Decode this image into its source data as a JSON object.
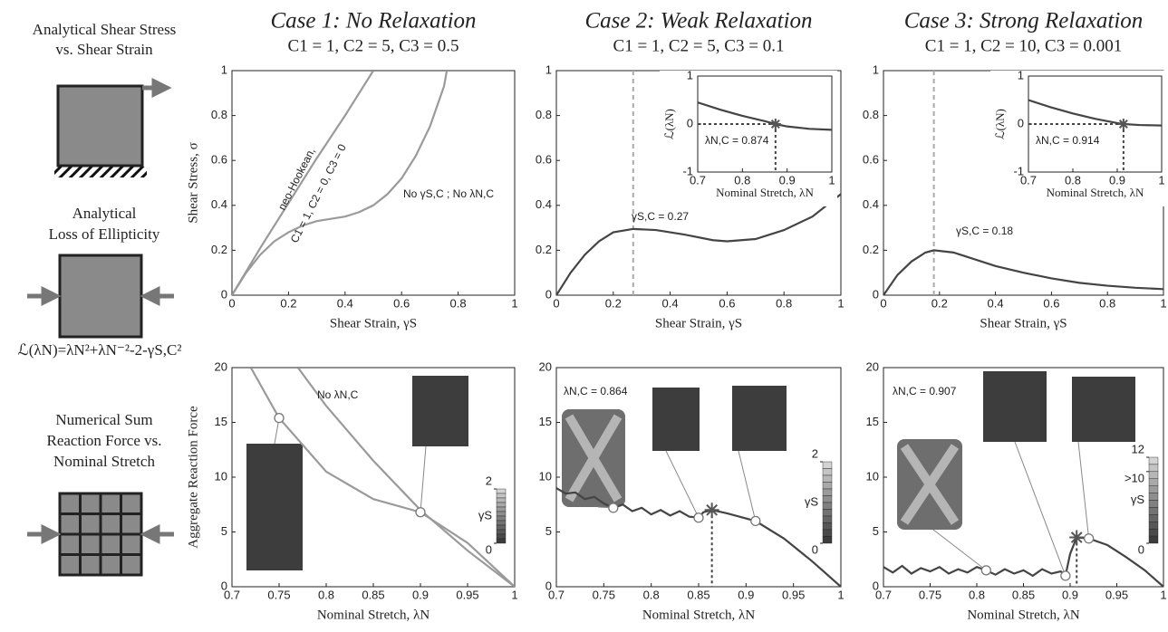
{
  "left_labels": {
    "shear_title": [
      "Analytical Shear Stress",
      "vs. Shear Strain"
    ],
    "ellipticity_title": [
      "Analytical",
      "Loss of Ellipticity"
    ],
    "formula": "ℒ(λN)=λN²+λN⁻²-2-γS,C²",
    "numerical_title": [
      "Numerical Sum",
      "Reaction Force vs.",
      "Nominal Stretch"
    ]
  },
  "chart_data": [
    {
      "type": "line",
      "title": "Case 1: No Relaxation",
      "subtitle": "C1 = 1, C2 = 5, C3 = 0.5",
      "xlabel": "Shear Strain, γS",
      "ylabel": "Shear Stress, σ",
      "xlim": [
        0,
        1
      ],
      "ylim": [
        0,
        1
      ],
      "xticks": [
        0,
        0.2,
        0.4,
        0.6,
        0.8,
        1
      ],
      "yticks": [
        0,
        0.2,
        0.4,
        0.6,
        0.8,
        1
      ],
      "series": [
        {
          "color": "#9a9a9a",
          "x": [
            0,
            0.1,
            0.2,
            0.3,
            0.4,
            0.5
          ],
          "values": [
            0,
            0.21,
            0.41,
            0.61,
            0.8,
            1
          ]
        },
        {
          "color": "#9a9a9a",
          "x": [
            0,
            0.05,
            0.1,
            0.15,
            0.2,
            0.25,
            0.3,
            0.35,
            0.4,
            0.45,
            0.5,
            0.55,
            0.6,
            0.65,
            0.7,
            0.75,
            0.76
          ],
          "values": [
            0,
            0.1,
            0.18,
            0.24,
            0.28,
            0.31,
            0.33,
            0.34,
            0.35,
            0.37,
            0.4,
            0.45,
            0.52,
            0.62,
            0.75,
            0.93,
            1
          ]
        }
      ],
      "annotations": [
        "neo-Hookean,",
        "C1 = 1, C2 = 0, C3 = 0",
        "No γS,C ; No λN,C"
      ]
    },
    {
      "type": "line",
      "title": "Case 2: Weak Relaxation",
      "subtitle": "C1 = 1, C2 = 5, C3 = 0.1",
      "xlabel": "Shear Strain, γS",
      "xlim": [
        0,
        1
      ],
      "ylim": [
        0,
        1
      ],
      "xticks": [
        0,
        0.2,
        0.4,
        0.6,
        0.8,
        1
      ],
      "yticks": [
        0,
        0.2,
        0.4,
        0.6,
        0.8,
        1
      ],
      "series": [
        {
          "color": "#444444",
          "x": [
            0,
            0.05,
            0.1,
            0.15,
            0.2,
            0.27,
            0.35,
            0.45,
            0.55,
            0.6,
            0.7,
            0.8,
            0.9,
            1
          ],
          "values": [
            0,
            0.1,
            0.18,
            0.24,
            0.28,
            0.295,
            0.29,
            0.27,
            0.245,
            0.24,
            0.25,
            0.29,
            0.35,
            0.45
          ]
        }
      ],
      "vline": 0.27,
      "annotations": [
        "γS,C = 0.27"
      ]
    },
    {
      "type": "line",
      "title": "Case 3: Strong Relaxation",
      "subtitle": "C1 = 1, C2 = 10, C3 = 0.001",
      "xlabel": "Shear Strain, γS",
      "xlim": [
        0,
        1
      ],
      "ylim": [
        0,
        1
      ],
      "xticks": [
        0,
        0.2,
        0.4,
        0.6,
        0.8,
        1
      ],
      "yticks": [
        0,
        0.2,
        0.4,
        0.6,
        0.8,
        1
      ],
      "series": [
        {
          "color": "#444444",
          "x": [
            0,
            0.05,
            0.1,
            0.15,
            0.18,
            0.25,
            0.3,
            0.4,
            0.5,
            0.6,
            0.7,
            0.8,
            0.9,
            1
          ],
          "values": [
            0,
            0.09,
            0.15,
            0.19,
            0.2,
            0.19,
            0.17,
            0.13,
            0.1,
            0.075,
            0.055,
            0.042,
            0.033,
            0.027
          ]
        }
      ],
      "vline": 0.18,
      "annotations": [
        "γS,C = 0.18"
      ]
    },
    {
      "type": "line",
      "xlabel": "Nominal Stretch, λN",
      "ylabel": "ℒ(λN)",
      "xlim": [
        0.7,
        1
      ],
      "ylim": [
        -1,
        1
      ],
      "xticks": [
        0.7,
        0.8,
        0.9,
        1
      ],
      "yticks": [
        -1,
        0,
        1
      ],
      "series": [
        {
          "color": "#444444",
          "x": [
            0.7,
            0.75,
            0.8,
            0.85,
            0.874,
            0.9,
            0.95,
            1
          ],
          "values": [
            0.45,
            0.3,
            0.17,
            0.06,
            0,
            -0.05,
            -0.1,
            -0.12
          ]
        }
      ],
      "critical": {
        "x": 0.874,
        "y": 0
      },
      "annotations": [
        "λN,C = 0.874"
      ]
    },
    {
      "type": "line",
      "xlabel": "Nominal Stretch, λN",
      "ylabel": "ℒ(λN)",
      "xlim": [
        0.7,
        1
      ],
      "ylim": [
        -1,
        1
      ],
      "xticks": [
        0.7,
        0.8,
        0.9,
        1
      ],
      "yticks": [
        -1,
        0,
        1
      ],
      "series": [
        {
          "color": "#444444",
          "x": [
            0.7,
            0.75,
            0.8,
            0.85,
            0.9,
            0.914,
            0.95,
            1
          ],
          "values": [
            0.5,
            0.35,
            0.22,
            0.11,
            0.02,
            0,
            -0.02,
            -0.03
          ]
        }
      ],
      "critical": {
        "x": 0.914,
        "y": 0
      },
      "annotations": [
        "λN,C = 0.914"
      ]
    },
    {
      "type": "line",
      "xlabel": "Nominal Stretch, λN",
      "ylabel": "Aggregate Reaction Force",
      "xlim": [
        0.7,
        1
      ],
      "ylim": [
        0,
        20
      ],
      "xticks": [
        0.7,
        0.75,
        0.8,
        0.85,
        0.9,
        0.95,
        1
      ],
      "yticks": [
        0,
        5,
        10,
        15,
        20
      ],
      "series": [
        {
          "color": "#9a9a9a",
          "x": [
            0.77,
            0.8,
            0.85,
            0.9,
            0.95,
            1
          ],
          "values": [
            20,
            16.5,
            11.5,
            7,
            3.3,
            0
          ]
        },
        {
          "color": "#9a9a9a",
          "x": [
            0.72,
            0.75,
            0.8,
            0.85,
            0.9,
            0.95,
            1
          ],
          "values": [
            20,
            15.4,
            10.5,
            8,
            6.8,
            4,
            0
          ]
        }
      ],
      "markers": {
        "x": [
          0.75,
          0.9
        ],
        "values": [
          15.4,
          6.8
        ]
      },
      "colorbar": {
        "label": "γS",
        "clim": [
          0,
          2
        ],
        "ticks": [
          0,
          2
        ]
      },
      "annotations": [
        "No λN,C"
      ]
    },
    {
      "type": "line",
      "xlabel": "Nominal Stretch, λN",
      "xlim": [
        0.7,
        1
      ],
      "ylim": [
        0,
        20
      ],
      "xticks": [
        0.7,
        0.75,
        0.8,
        0.85,
        0.9,
        0.95,
        1
      ],
      "yticks": [
        0,
        5,
        10,
        15,
        20
      ],
      "series": [
        {
          "color": "#444444",
          "x": [
            0.7,
            0.71,
            0.72,
            0.73,
            0.74,
            0.75,
            0.76,
            0.77,
            0.78,
            0.79,
            0.8,
            0.81,
            0.82,
            0.83,
            0.84,
            0.85,
            0.855,
            0.864,
            0.88,
            0.91,
            0.94,
            0.97,
            1
          ],
          "values": [
            9,
            8.5,
            8.6,
            8,
            8.2,
            7.6,
            7.2,
            7.5,
            6.9,
            7.2,
            6.6,
            7,
            6.5,
            6.9,
            6.4,
            6.3,
            6.8,
            7,
            6.7,
            6,
            4.4,
            2.3,
            0
          ]
        }
      ],
      "markers": {
        "x": [
          0.76,
          0.85,
          0.91
        ],
        "values": [
          7.2,
          6.3,
          6
        ]
      },
      "critical": {
        "x": 0.864,
        "y": 7
      },
      "colorbar": {
        "label": "γS",
        "clim": [
          0,
          2
        ],
        "ticks": [
          0,
          2
        ]
      },
      "annotations": [
        "λN,C = 0.864"
      ]
    },
    {
      "type": "line",
      "xlabel": "Nominal Stretch, λN",
      "xlim": [
        0.7,
        1
      ],
      "ylim": [
        0,
        20
      ],
      "xticks": [
        0.7,
        0.75,
        0.8,
        0.85,
        0.9,
        0.95,
        1
      ],
      "yticks": [
        0,
        5,
        10,
        15,
        20
      ],
      "series": [
        {
          "color": "#444444",
          "x": [
            0.7,
            0.71,
            0.72,
            0.73,
            0.74,
            0.75,
            0.76,
            0.77,
            0.78,
            0.79,
            0.8,
            0.81,
            0.82,
            0.83,
            0.84,
            0.85,
            0.86,
            0.87,
            0.88,
            0.89,
            0.895,
            0.9,
            0.907,
            0.92,
            0.94,
            0.96,
            0.98,
            1
          ],
          "values": [
            1.8,
            1.3,
            1.9,
            1.2,
            1.7,
            1.4,
            1.8,
            1.2,
            1.6,
            1.3,
            1.8,
            1.5,
            1.1,
            1.6,
            1.2,
            1.5,
            1,
            1.6,
            1.2,
            1.4,
            1,
            3,
            4.5,
            4.4,
            3.8,
            2.7,
            1.5,
            0
          ]
        }
      ],
      "markers": {
        "x": [
          0.81,
          0.895,
          0.92
        ],
        "values": [
          1.5,
          1,
          4.4
        ]
      },
      "critical": {
        "x": 0.907,
        "y": 4.5
      },
      "colorbar": {
        "label": "γS",
        "clim": [
          0,
          12
        ],
        "ticks": [
          0,
          {
            "value": 10,
            "label": ">10"
          },
          12
        ]
      },
      "annotations": [
        "λN,C = 0.907"
      ]
    }
  ]
}
